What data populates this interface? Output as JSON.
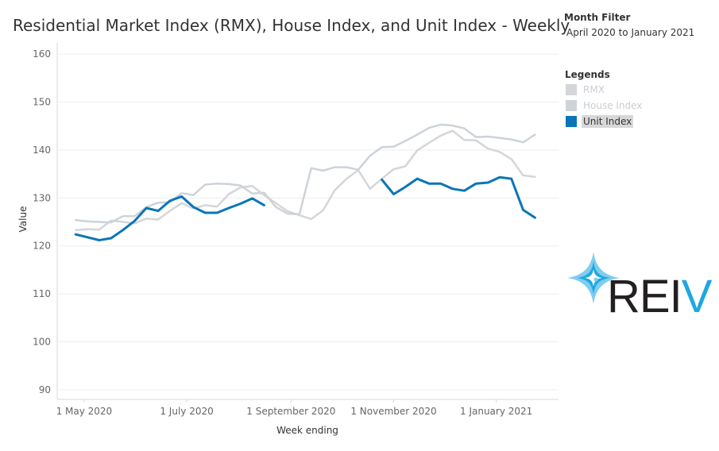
{
  "chart_data": {
    "type": "line",
    "title": "Residential Market Index (RMX), House Index, and Unit Index - Weekly",
    "xlabel": "Week ending",
    "ylabel": "Value",
    "ylim": [
      88,
      162
    ],
    "y_ticks": [
      90,
      100,
      110,
      120,
      130,
      140,
      150,
      160
    ],
    "x_ticks": [
      "1 May 2020",
      "1 July 2020",
      "1 September 2020",
      "1 November 2020",
      "1 January 2021"
    ],
    "x_tick_dates": [
      "2020-05-01",
      "2020-07-01",
      "2020-09-01",
      "2020-11-01",
      "2021-01-01"
    ],
    "xlim": [
      "2020-04-15",
      "2021-02-07"
    ],
    "grid": true,
    "legend_position": "right",
    "series": [
      {
        "name": "RMX",
        "color": "#d4d6d9",
        "highlighted": false,
        "x": [
          "2020-04-26",
          "2020-05-03",
          "2020-05-10",
          "2020-05-17",
          "2020-05-24",
          "2020-05-31",
          "2020-06-07",
          "2020-06-14",
          "2020-06-21",
          "2020-06-28",
          "2020-07-05",
          "2020-07-12",
          "2020-07-19",
          "2020-07-26",
          "2020-08-02",
          "2020-08-09",
          "2020-08-16",
          "2020-08-23",
          "2020-08-30",
          "2020-09-06",
          "2020-09-13",
          "2020-09-20",
          "2020-09-27",
          "2020-10-04",
          "2020-10-11",
          "2020-10-18",
          "2020-10-25",
          "2020-11-01",
          "2020-11-08",
          "2020-11-15",
          "2020-11-22",
          "2020-11-29",
          "2020-12-06",
          "2020-12-13",
          "2020-12-20",
          "2020-12-27",
          "2021-01-03",
          "2021-01-10",
          "2021-01-17",
          "2021-01-24"
        ],
        "values": [
          123.3,
          123.5,
          123.4,
          125.3,
          125.0,
          124.7,
          125.7,
          125.5,
          127.3,
          128.9,
          127.8,
          128.5,
          128.2,
          130.8,
          132.2,
          132.5,
          130.6,
          128.9,
          127.2,
          126.4,
          125.6,
          127.4,
          131.6,
          134.0,
          135.8,
          131.9,
          134.0,
          136.0,
          136.6,
          139.9,
          141.5,
          143.0,
          144.0,
          142.1,
          142.0,
          140.3,
          139.6,
          138.1,
          134.7,
          134.4
        ]
      },
      {
        "name": "House Index",
        "color": "#cdd3d9",
        "highlighted": false,
        "x": [
          "2020-04-26",
          "2020-05-03",
          "2020-05-10",
          "2020-05-17",
          "2020-05-24",
          "2020-05-31",
          "2020-06-07",
          "2020-06-14",
          "2020-06-21",
          "2020-06-28",
          "2020-07-05",
          "2020-07-12",
          "2020-07-19",
          "2020-07-26",
          "2020-08-02",
          "2020-08-09",
          "2020-08-16",
          "2020-08-23",
          "2020-08-30",
          "2020-09-06",
          "2020-09-13",
          "2020-09-20",
          "2020-09-27",
          "2020-10-04",
          "2020-10-11",
          "2020-10-18",
          "2020-10-25",
          "2020-11-01",
          "2020-11-08",
          "2020-11-15",
          "2020-11-22",
          "2020-11-29",
          "2020-12-06",
          "2020-12-13",
          "2020-12-20",
          "2020-12-27",
          "2021-01-03",
          "2021-01-10",
          "2021-01-17",
          "2021-01-24"
        ],
        "values": [
          125.4,
          125.1,
          125.0,
          124.9,
          126.2,
          126.2,
          128.1,
          129.0,
          129.1,
          131.0,
          130.6,
          132.8,
          133.0,
          132.9,
          132.6,
          130.9,
          131.1,
          128.1,
          126.7,
          126.6,
          136.2,
          135.7,
          136.4,
          136.4,
          135.9,
          138.8,
          140.6,
          140.7,
          141.9,
          143.2,
          144.6,
          145.3,
          145.1,
          144.5,
          142.7,
          142.8,
          142.5,
          142.2,
          141.6,
          143.2
        ]
      },
      {
        "name": "Unit Index",
        "color": "#0a75b9",
        "highlighted": true,
        "segments": [
          {
            "x": [
              "2020-04-26",
              "2020-05-03",
              "2020-05-10",
              "2020-05-17",
              "2020-05-24",
              "2020-05-31",
              "2020-06-07",
              "2020-06-14",
              "2020-06-21",
              "2020-06-28",
              "2020-07-05",
              "2020-07-12",
              "2020-07-19",
              "2020-07-26",
              "2020-08-02",
              "2020-08-09",
              "2020-08-16",
              "2020-08-23"
            ],
            "values": [
              122.4,
              121.8,
              121.2,
              121.6,
              123.3,
              125.2,
              127.9,
              127.3,
              129.4,
              130.3,
              128.1,
              126.9,
              126.9,
              127.9,
              128.8,
              129.9,
              128.5,
              null
            ]
          },
          {
            "x": [
              "2020-10-25",
              "2020-11-01",
              "2020-11-08",
              "2020-11-15",
              "2020-11-22",
              "2020-11-29",
              "2020-12-06",
              "2020-12-13",
              "2020-12-20",
              "2020-12-27",
              "2021-01-03",
              "2021-01-10",
              "2021-01-17",
              "2021-01-24"
            ],
            "values": [
              133.8,
              130.8,
              132.3,
              134.0,
              133.0,
              133.0,
              131.9,
              131.5,
              133.0,
              133.2,
              134.3,
              134.0,
              127.5,
              125.9
            ]
          }
        ]
      }
    ]
  },
  "filter": {
    "title": "Month Filter",
    "value": "April 2020 to January 2021"
  },
  "legend": {
    "title": "Legends",
    "items": [
      {
        "label": "RMX",
        "color": "#d4d6d9",
        "active": false
      },
      {
        "label": "House Index",
        "color": "#cdd3d9",
        "active": false
      },
      {
        "label": "Unit Index",
        "color": "#0a75b9",
        "active": true
      }
    ]
  },
  "logo": {
    "text_dark": "REI",
    "text_blue": "V",
    "colors": {
      "star_light": "#7fcdef",
      "star_dark": "#1ea7e1",
      "text_dark": "#231f20",
      "text_blue": "#1ea7e1"
    }
  }
}
